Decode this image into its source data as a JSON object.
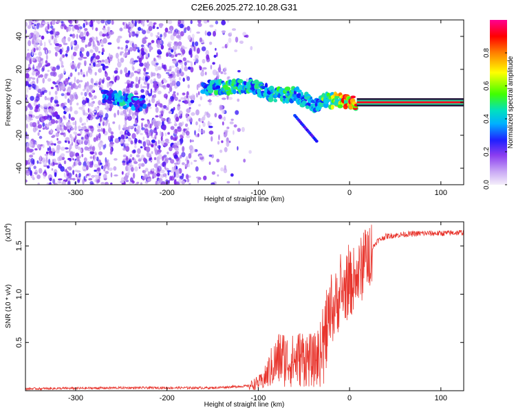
{
  "colors": {
    "snr_line": "#e8342c",
    "center_band": "#2a1a40",
    "axis": "#000000"
  },
  "chart_data": [
    {
      "type": "heatmap",
      "title": "C2E6.2025.272.10.28.G31",
      "xlabel": "Height of straight line (km)",
      "ylabel": "Frequency (Hz)",
      "xlim": [
        -355,
        125
      ],
      "ylim": [
        -50,
        50
      ],
      "x_ticks": [
        -300,
        -200,
        -100,
        0,
        100
      ],
      "y_ticks": [
        -40,
        -20,
        0,
        20,
        40
      ],
      "colorbar": {
        "label": "Normalized spectral amplitude",
        "range": [
          0,
          1
        ],
        "ticks": [
          "0.0",
          "0.2",
          "0.4",
          "0.6",
          "0.8"
        ],
        "tick_values": [
          0,
          0.2,
          0.4,
          0.6,
          0.8
        ],
        "colormap": [
          "#f4eefa",
          "#b890f0",
          "#7b1fe8",
          "#1010ff",
          "#00c8ff",
          "#20e0a0",
          "#40ff00",
          "#ffff00",
          "#ff8000",
          "#ff0000",
          "#ff0080"
        ]
      },
      "carrier_track": [
        {
          "x": -270,
          "y": 4,
          "v": 0.35
        },
        {
          "x": -260,
          "y": 3,
          "v": 0.4
        },
        {
          "x": -245,
          "y": 1,
          "v": 0.5
        },
        {
          "x": -230,
          "y": -1,
          "v": 0.35
        },
        {
          "x": -155,
          "y": 9,
          "v": 0.45
        },
        {
          "x": -140,
          "y": 9,
          "v": 0.55
        },
        {
          "x": -120,
          "y": 10,
          "v": 0.55
        },
        {
          "x": -105,
          "y": 10,
          "v": 0.5
        },
        {
          "x": -90,
          "y": 6,
          "v": 0.5
        },
        {
          "x": -75,
          "y": 4,
          "v": 0.55
        },
        {
          "x": -60,
          "y": 5,
          "v": 0.5
        },
        {
          "x": -45,
          "y": 0,
          "v": 0.45
        },
        {
          "x": -35,
          "y": -2,
          "v": 0.45
        },
        {
          "x": -25,
          "y": 1,
          "v": 0.65
        },
        {
          "x": -15,
          "y": 1,
          "v": 0.75
        },
        {
          "x": -5,
          "y": 1,
          "v": 0.85
        },
        {
          "x": 5,
          "y": 0,
          "v": 0.95
        },
        {
          "x": 125,
          "y": 0,
          "v": 0.95
        }
      ]
    },
    {
      "type": "line",
      "xlabel": "Height of straight line (km)",
      "ylabel": "SNR (10 * v/v)",
      "y_multiplier": "(x10",
      "y_multiplier_exp": "4",
      "y_multiplier_close": ")",
      "xlim": [
        -355,
        125
      ],
      "ylim": [
        0,
        1.75
      ],
      "x_ticks": [
        -300,
        -200,
        -100,
        0,
        100
      ],
      "y_ticks": [
        0.5,
        1.0,
        1.5
      ],
      "y_tick_labels": [
        "0.5",
        "1.0",
        "1.5"
      ],
      "series": [
        {
          "name": "SNR",
          "envelope": [
            {
              "x": -355,
              "y": 0.02
            },
            {
              "x": -250,
              "y": 0.03
            },
            {
              "x": -150,
              "y": 0.03
            },
            {
              "x": -110,
              "y": 0.05
            },
            {
              "x": -95,
              "y": 0.1
            },
            {
              "x": -85,
              "y": 0.25
            },
            {
              "x": -75,
              "y": 0.35
            },
            {
              "x": -65,
              "y": 0.3
            },
            {
              "x": -50,
              "y": 0.35
            },
            {
              "x": -40,
              "y": 0.3
            },
            {
              "x": -30,
              "y": 0.4
            },
            {
              "x": -20,
              "y": 0.8
            },
            {
              "x": -10,
              "y": 1.0
            },
            {
              "x": 0,
              "y": 1.1
            },
            {
              "x": 10,
              "y": 1.2
            },
            {
              "x": 20,
              "y": 1.4
            },
            {
              "x": 30,
              "y": 1.55
            },
            {
              "x": 40,
              "y": 1.6
            },
            {
              "x": 60,
              "y": 1.62
            },
            {
              "x": 80,
              "y": 1.63
            },
            {
              "x": 100,
              "y": 1.63
            },
            {
              "x": 125,
              "y": 1.64
            }
          ]
        }
      ]
    }
  ]
}
